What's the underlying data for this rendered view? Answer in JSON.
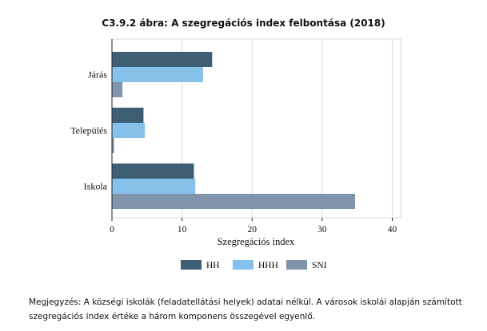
{
  "chart_data": {
    "type": "bar",
    "orientation": "horizontal",
    "title": "C3.9.2 ábra: A szegregációs index felbontása (2018)",
    "xlabel": "Szegregációs index",
    "ylabel": "",
    "xlim": [
      0,
      42
    ],
    "xticks": [
      0,
      10,
      20,
      30,
      40
    ],
    "grid": true,
    "legend_position": "bottom",
    "categories": [
      "Járás",
      "Település",
      "Iskola"
    ],
    "series": [
      {
        "name": "HH",
        "color": "#3e5f73",
        "values": [
          14.3,
          4.5,
          11.7
        ]
      },
      {
        "name": "HHH",
        "color": "#85c1ea",
        "values": [
          13.0,
          4.7,
          11.9
        ]
      },
      {
        "name": "SNI",
        "color": "#8095ab",
        "values": [
          1.5,
          0.3,
          34.7
        ]
      }
    ]
  },
  "note": "Megjegyzés: A községi iskolák (feladatellátási helyek) adatai nélkül. A városok iskolái alapján számított szegregációs index értéke a három komponens összegével egyenlő."
}
